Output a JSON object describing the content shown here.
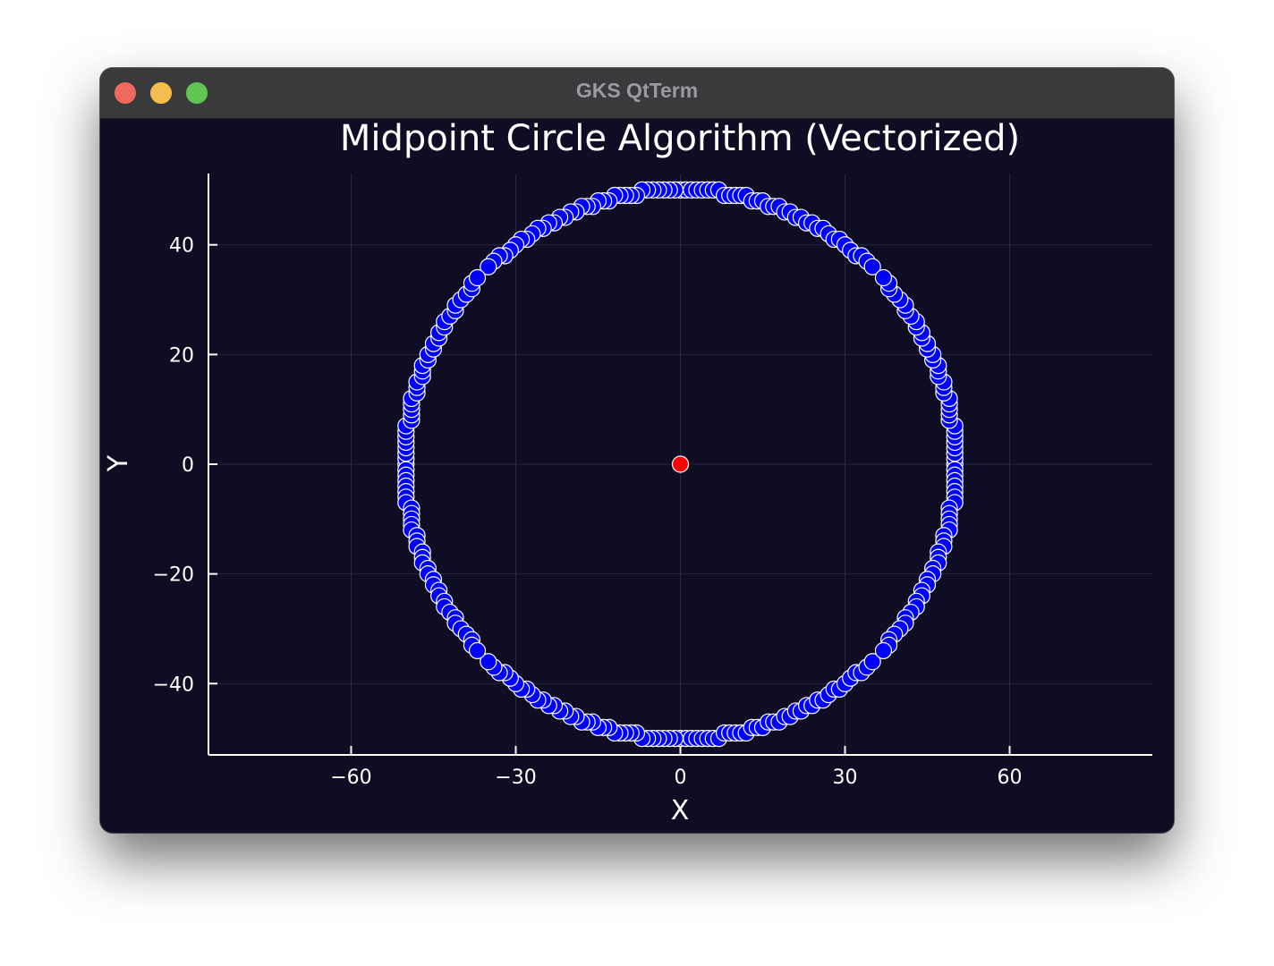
{
  "window": {
    "title": "GKS QtTerm"
  },
  "chart_data": {
    "type": "scatter",
    "title": "Midpoint Circle Algorithm (Vectorized)",
    "xlabel": "X",
    "ylabel": "Y",
    "xlim": [
      -86,
      86
    ],
    "ylim": [
      -53,
      53
    ],
    "xticks": [
      -60,
      -30,
      0,
      30,
      60
    ],
    "xtick_labels": [
      "−60",
      "−30",
      "0",
      "30",
      "60"
    ],
    "yticks": [
      -40,
      -20,
      0,
      20,
      40
    ],
    "ytick_labels": [
      "−40",
      "−20",
      "0",
      "20",
      "40"
    ],
    "grid": true,
    "legend": "none",
    "series": [
      {
        "marker_color": "#0000ff",
        "points": [
          [
            0,
            50
          ],
          [
            1,
            50
          ],
          [
            2,
            50
          ],
          [
            3,
            50
          ],
          [
            4,
            50
          ],
          [
            5,
            50
          ],
          [
            6,
            50
          ],
          [
            7,
            50
          ],
          [
            8,
            49
          ],
          [
            9,
            49
          ],
          [
            10,
            49
          ],
          [
            11,
            49
          ],
          [
            12,
            49
          ],
          [
            13,
            48
          ],
          [
            14,
            48
          ],
          [
            15,
            48
          ],
          [
            16,
            47
          ],
          [
            17,
            47
          ],
          [
            18,
            47
          ],
          [
            19,
            46
          ],
          [
            20,
            46
          ],
          [
            21,
            45
          ],
          [
            22,
            45
          ],
          [
            23,
            44
          ],
          [
            24,
            44
          ],
          [
            25,
            43
          ],
          [
            26,
            43
          ],
          [
            27,
            42
          ],
          [
            28,
            41
          ],
          [
            29,
            41
          ],
          [
            30,
            40
          ],
          [
            31,
            39
          ],
          [
            32,
            38
          ],
          [
            33,
            38
          ],
          [
            34,
            37
          ],
          [
            35,
            36
          ],
          [
            -1,
            50
          ],
          [
            -2,
            50
          ],
          [
            -3,
            50
          ],
          [
            -4,
            50
          ],
          [
            -5,
            50
          ],
          [
            -6,
            50
          ],
          [
            -7,
            50
          ],
          [
            -8,
            49
          ],
          [
            -9,
            49
          ],
          [
            -10,
            49
          ],
          [
            -11,
            49
          ],
          [
            -12,
            49
          ],
          [
            -13,
            48
          ],
          [
            -14,
            48
          ],
          [
            -15,
            48
          ],
          [
            -16,
            47
          ],
          [
            -17,
            47
          ],
          [
            -18,
            47
          ],
          [
            -19,
            46
          ],
          [
            -20,
            46
          ],
          [
            -21,
            45
          ],
          [
            -22,
            45
          ],
          [
            -23,
            44
          ],
          [
            -24,
            44
          ],
          [
            -25,
            43
          ],
          [
            -26,
            43
          ],
          [
            -27,
            42
          ],
          [
            -28,
            41
          ],
          [
            -29,
            41
          ],
          [
            -30,
            40
          ],
          [
            -31,
            39
          ],
          [
            -32,
            38
          ],
          [
            -33,
            38
          ],
          [
            -34,
            37
          ],
          [
            -35,
            36
          ],
          [
            0,
            -50
          ],
          [
            1,
            -50
          ],
          [
            2,
            -50
          ],
          [
            3,
            -50
          ],
          [
            4,
            -50
          ],
          [
            5,
            -50
          ],
          [
            6,
            -50
          ],
          [
            7,
            -50
          ],
          [
            8,
            -49
          ],
          [
            9,
            -49
          ],
          [
            10,
            -49
          ],
          [
            11,
            -49
          ],
          [
            12,
            -49
          ],
          [
            13,
            -48
          ],
          [
            14,
            -48
          ],
          [
            15,
            -48
          ],
          [
            16,
            -47
          ],
          [
            17,
            -47
          ],
          [
            18,
            -47
          ],
          [
            19,
            -46
          ],
          [
            20,
            -46
          ],
          [
            21,
            -45
          ],
          [
            22,
            -45
          ],
          [
            23,
            -44
          ],
          [
            24,
            -44
          ],
          [
            25,
            -43
          ],
          [
            26,
            -43
          ],
          [
            27,
            -42
          ],
          [
            28,
            -41
          ],
          [
            29,
            -41
          ],
          [
            30,
            -40
          ],
          [
            31,
            -39
          ],
          [
            32,
            -38
          ],
          [
            33,
            -38
          ],
          [
            34,
            -37
          ],
          [
            35,
            -36
          ],
          [
            -1,
            -50
          ],
          [
            -2,
            -50
          ],
          [
            -3,
            -50
          ],
          [
            -4,
            -50
          ],
          [
            -5,
            -50
          ],
          [
            -6,
            -50
          ],
          [
            -7,
            -50
          ],
          [
            -8,
            -49
          ],
          [
            -9,
            -49
          ],
          [
            -10,
            -49
          ],
          [
            -11,
            -49
          ],
          [
            -12,
            -49
          ],
          [
            -13,
            -48
          ],
          [
            -14,
            -48
          ],
          [
            -15,
            -48
          ],
          [
            -16,
            -47
          ],
          [
            -17,
            -47
          ],
          [
            -18,
            -47
          ],
          [
            -19,
            -46
          ],
          [
            -20,
            -46
          ],
          [
            -21,
            -45
          ],
          [
            -22,
            -45
          ],
          [
            -23,
            -44
          ],
          [
            -24,
            -44
          ],
          [
            -25,
            -43
          ],
          [
            -26,
            -43
          ],
          [
            -27,
            -42
          ],
          [
            -28,
            -41
          ],
          [
            -29,
            -41
          ],
          [
            -30,
            -40
          ],
          [
            -31,
            -39
          ],
          [
            -32,
            -38
          ],
          [
            -33,
            -38
          ],
          [
            -34,
            -37
          ],
          [
            -35,
            -36
          ],
          [
            50,
            0
          ],
          [
            50,
            1
          ],
          [
            50,
            2
          ],
          [
            50,
            3
          ],
          [
            50,
            4
          ],
          [
            50,
            5
          ],
          [
            50,
            6
          ],
          [
            50,
            7
          ],
          [
            49,
            8
          ],
          [
            49,
            9
          ],
          [
            49,
            10
          ],
          [
            49,
            11
          ],
          [
            49,
            12
          ],
          [
            48,
            13
          ],
          [
            48,
            14
          ],
          [
            48,
            15
          ],
          [
            47,
            16
          ],
          [
            47,
            17
          ],
          [
            47,
            18
          ],
          [
            46,
            19
          ],
          [
            46,
            20
          ],
          [
            45,
            21
          ],
          [
            45,
            22
          ],
          [
            44,
            23
          ],
          [
            44,
            24
          ],
          [
            43,
            25
          ],
          [
            43,
            26
          ],
          [
            42,
            27
          ],
          [
            41,
            28
          ],
          [
            41,
            29
          ],
          [
            40,
            30
          ],
          [
            39,
            31
          ],
          [
            38,
            32
          ],
          [
            38,
            33
          ],
          [
            37,
            34
          ],
          [
            50,
            -1
          ],
          [
            50,
            -2
          ],
          [
            50,
            -3
          ],
          [
            50,
            -4
          ],
          [
            50,
            -5
          ],
          [
            50,
            -6
          ],
          [
            50,
            -7
          ],
          [
            49,
            -8
          ],
          [
            49,
            -9
          ],
          [
            49,
            -10
          ],
          [
            49,
            -11
          ],
          [
            49,
            -12
          ],
          [
            48,
            -13
          ],
          [
            48,
            -14
          ],
          [
            48,
            -15
          ],
          [
            47,
            -16
          ],
          [
            47,
            -17
          ],
          [
            47,
            -18
          ],
          [
            46,
            -19
          ],
          [
            46,
            -20
          ],
          [
            45,
            -21
          ],
          [
            45,
            -22
          ],
          [
            44,
            -23
          ],
          [
            44,
            -24
          ],
          [
            43,
            -25
          ],
          [
            43,
            -26
          ],
          [
            42,
            -27
          ],
          [
            41,
            -28
          ],
          [
            41,
            -29
          ],
          [
            40,
            -30
          ],
          [
            39,
            -31
          ],
          [
            38,
            -32
          ],
          [
            38,
            -33
          ],
          [
            37,
            -34
          ],
          [
            -50,
            0
          ],
          [
            -50,
            1
          ],
          [
            -50,
            2
          ],
          [
            -50,
            3
          ],
          [
            -50,
            4
          ],
          [
            -50,
            5
          ],
          [
            -50,
            6
          ],
          [
            -50,
            7
          ],
          [
            -49,
            8
          ],
          [
            -49,
            9
          ],
          [
            -49,
            10
          ],
          [
            -49,
            11
          ],
          [
            -49,
            12
          ],
          [
            -48,
            13
          ],
          [
            -48,
            14
          ],
          [
            -48,
            15
          ],
          [
            -47,
            16
          ],
          [
            -47,
            17
          ],
          [
            -47,
            18
          ],
          [
            -46,
            19
          ],
          [
            -46,
            20
          ],
          [
            -45,
            21
          ],
          [
            -45,
            22
          ],
          [
            -44,
            23
          ],
          [
            -44,
            24
          ],
          [
            -43,
            25
          ],
          [
            -43,
            26
          ],
          [
            -42,
            27
          ],
          [
            -41,
            28
          ],
          [
            -41,
            29
          ],
          [
            -40,
            30
          ],
          [
            -39,
            31
          ],
          [
            -38,
            32
          ],
          [
            -38,
            33
          ],
          [
            -37,
            34
          ],
          [
            -50,
            -1
          ],
          [
            -50,
            -2
          ],
          [
            -50,
            -3
          ],
          [
            -50,
            -4
          ],
          [
            -50,
            -5
          ],
          [
            -50,
            -6
          ],
          [
            -50,
            -7
          ],
          [
            -49,
            -8
          ],
          [
            -49,
            -9
          ],
          [
            -49,
            -10
          ],
          [
            -49,
            -11
          ],
          [
            -49,
            -12
          ],
          [
            -48,
            -13
          ],
          [
            -48,
            -14
          ],
          [
            -48,
            -15
          ],
          [
            -47,
            -16
          ],
          [
            -47,
            -17
          ],
          [
            -47,
            -18
          ],
          [
            -46,
            -19
          ],
          [
            -46,
            -20
          ],
          [
            -45,
            -21
          ],
          [
            -45,
            -22
          ],
          [
            -44,
            -23
          ],
          [
            -44,
            -24
          ],
          [
            -43,
            -25
          ],
          [
            -43,
            -26
          ],
          [
            -42,
            -27
          ],
          [
            -41,
            -28
          ],
          [
            -41,
            -29
          ],
          [
            -40,
            -30
          ],
          [
            -39,
            -31
          ],
          [
            -38,
            -32
          ],
          [
            -38,
            -33
          ],
          [
            -37,
            -34
          ]
        ]
      },
      {
        "marker_color": "#ff0000",
        "points": [
          [
            0,
            0
          ]
        ]
      }
    ]
  }
}
